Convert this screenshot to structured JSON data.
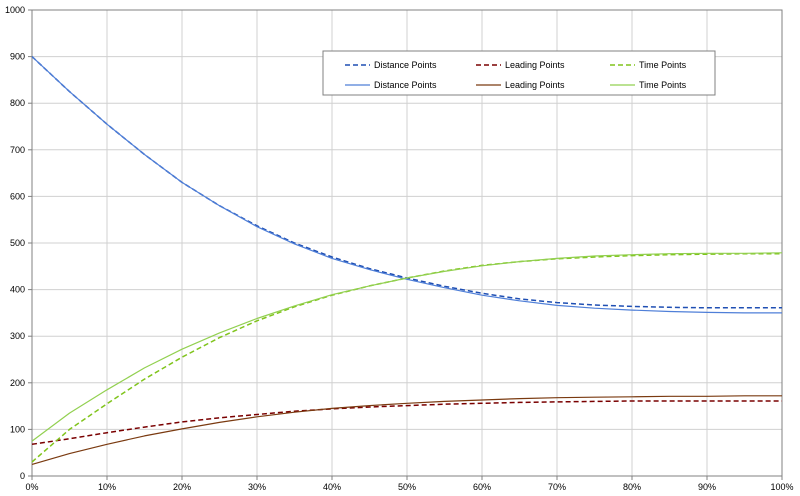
{
  "chart_data": {
    "type": "line",
    "title": "",
    "xlabel": "",
    "ylabel": "",
    "xlim": [
      0,
      100
    ],
    "ylim": [
      0,
      1000
    ],
    "x_ticks": [
      "0%",
      "10%",
      "20%",
      "30%",
      "40%",
      "50%",
      "60%",
      "70%",
      "80%",
      "90%",
      "100%"
    ],
    "y_ticks": [
      "0",
      "100",
      "200",
      "300",
      "400",
      "500",
      "600",
      "700",
      "800",
      "900",
      "1000"
    ],
    "grid": true,
    "legend_position": "top-right",
    "x": [
      0,
      5,
      10,
      15,
      20,
      25,
      30,
      35,
      40,
      45,
      50,
      55,
      60,
      65,
      70,
      75,
      80,
      85,
      90,
      95,
      100
    ],
    "series": [
      {
        "name": "Distance Points",
        "style": "dashed",
        "color": "#1f4fb3",
        "values": [
          900,
          825,
          755,
          690,
          630,
          580,
          537,
          500,
          470,
          445,
          425,
          407,
          392,
          380,
          372,
          367,
          364,
          362,
          361,
          361,
          361
        ]
      },
      {
        "name": "Leading Points",
        "style": "dashed",
        "color": "#7a0000",
        "values": [
          68,
          80,
          93,
          105,
          116,
          125,
          132,
          139,
          144,
          148,
          151,
          154,
          156,
          158,
          159,
          160,
          161,
          161,
          161,
          161,
          161
        ]
      },
      {
        "name": "Time Points",
        "style": "dashed",
        "color": "#80c41c",
        "values": [
          30,
          100,
          155,
          208,
          255,
          297,
          333,
          363,
          388,
          408,
          425,
          440,
          452,
          460,
          466,
          470,
          473,
          475,
          476,
          477,
          477
        ]
      },
      {
        "name": "Distance Points",
        "style": "solid",
        "color": "#4f7fd8",
        "values": [
          900,
          825,
          755,
          690,
          630,
          580,
          535,
          498,
          467,
          443,
          422,
          404,
          388,
          376,
          366,
          360,
          356,
          353,
          351,
          350,
          350
        ]
      },
      {
        "name": "Leading Points",
        "style": "solid",
        "color": "#7a3a10",
        "values": [
          25,
          48,
          68,
          86,
          101,
          115,
          127,
          137,
          145,
          151,
          156,
          160,
          163,
          166,
          168,
          169,
          170,
          171,
          171,
          172,
          172
        ]
      },
      {
        "name": "Time Points",
        "style": "solid",
        "color": "#92d050",
        "values": [
          75,
          135,
          185,
          232,
          272,
          307,
          338,
          365,
          389,
          408,
          425,
          439,
          451,
          460,
          467,
          472,
          475,
          477,
          478,
          478,
          479
        ]
      }
    ]
  }
}
